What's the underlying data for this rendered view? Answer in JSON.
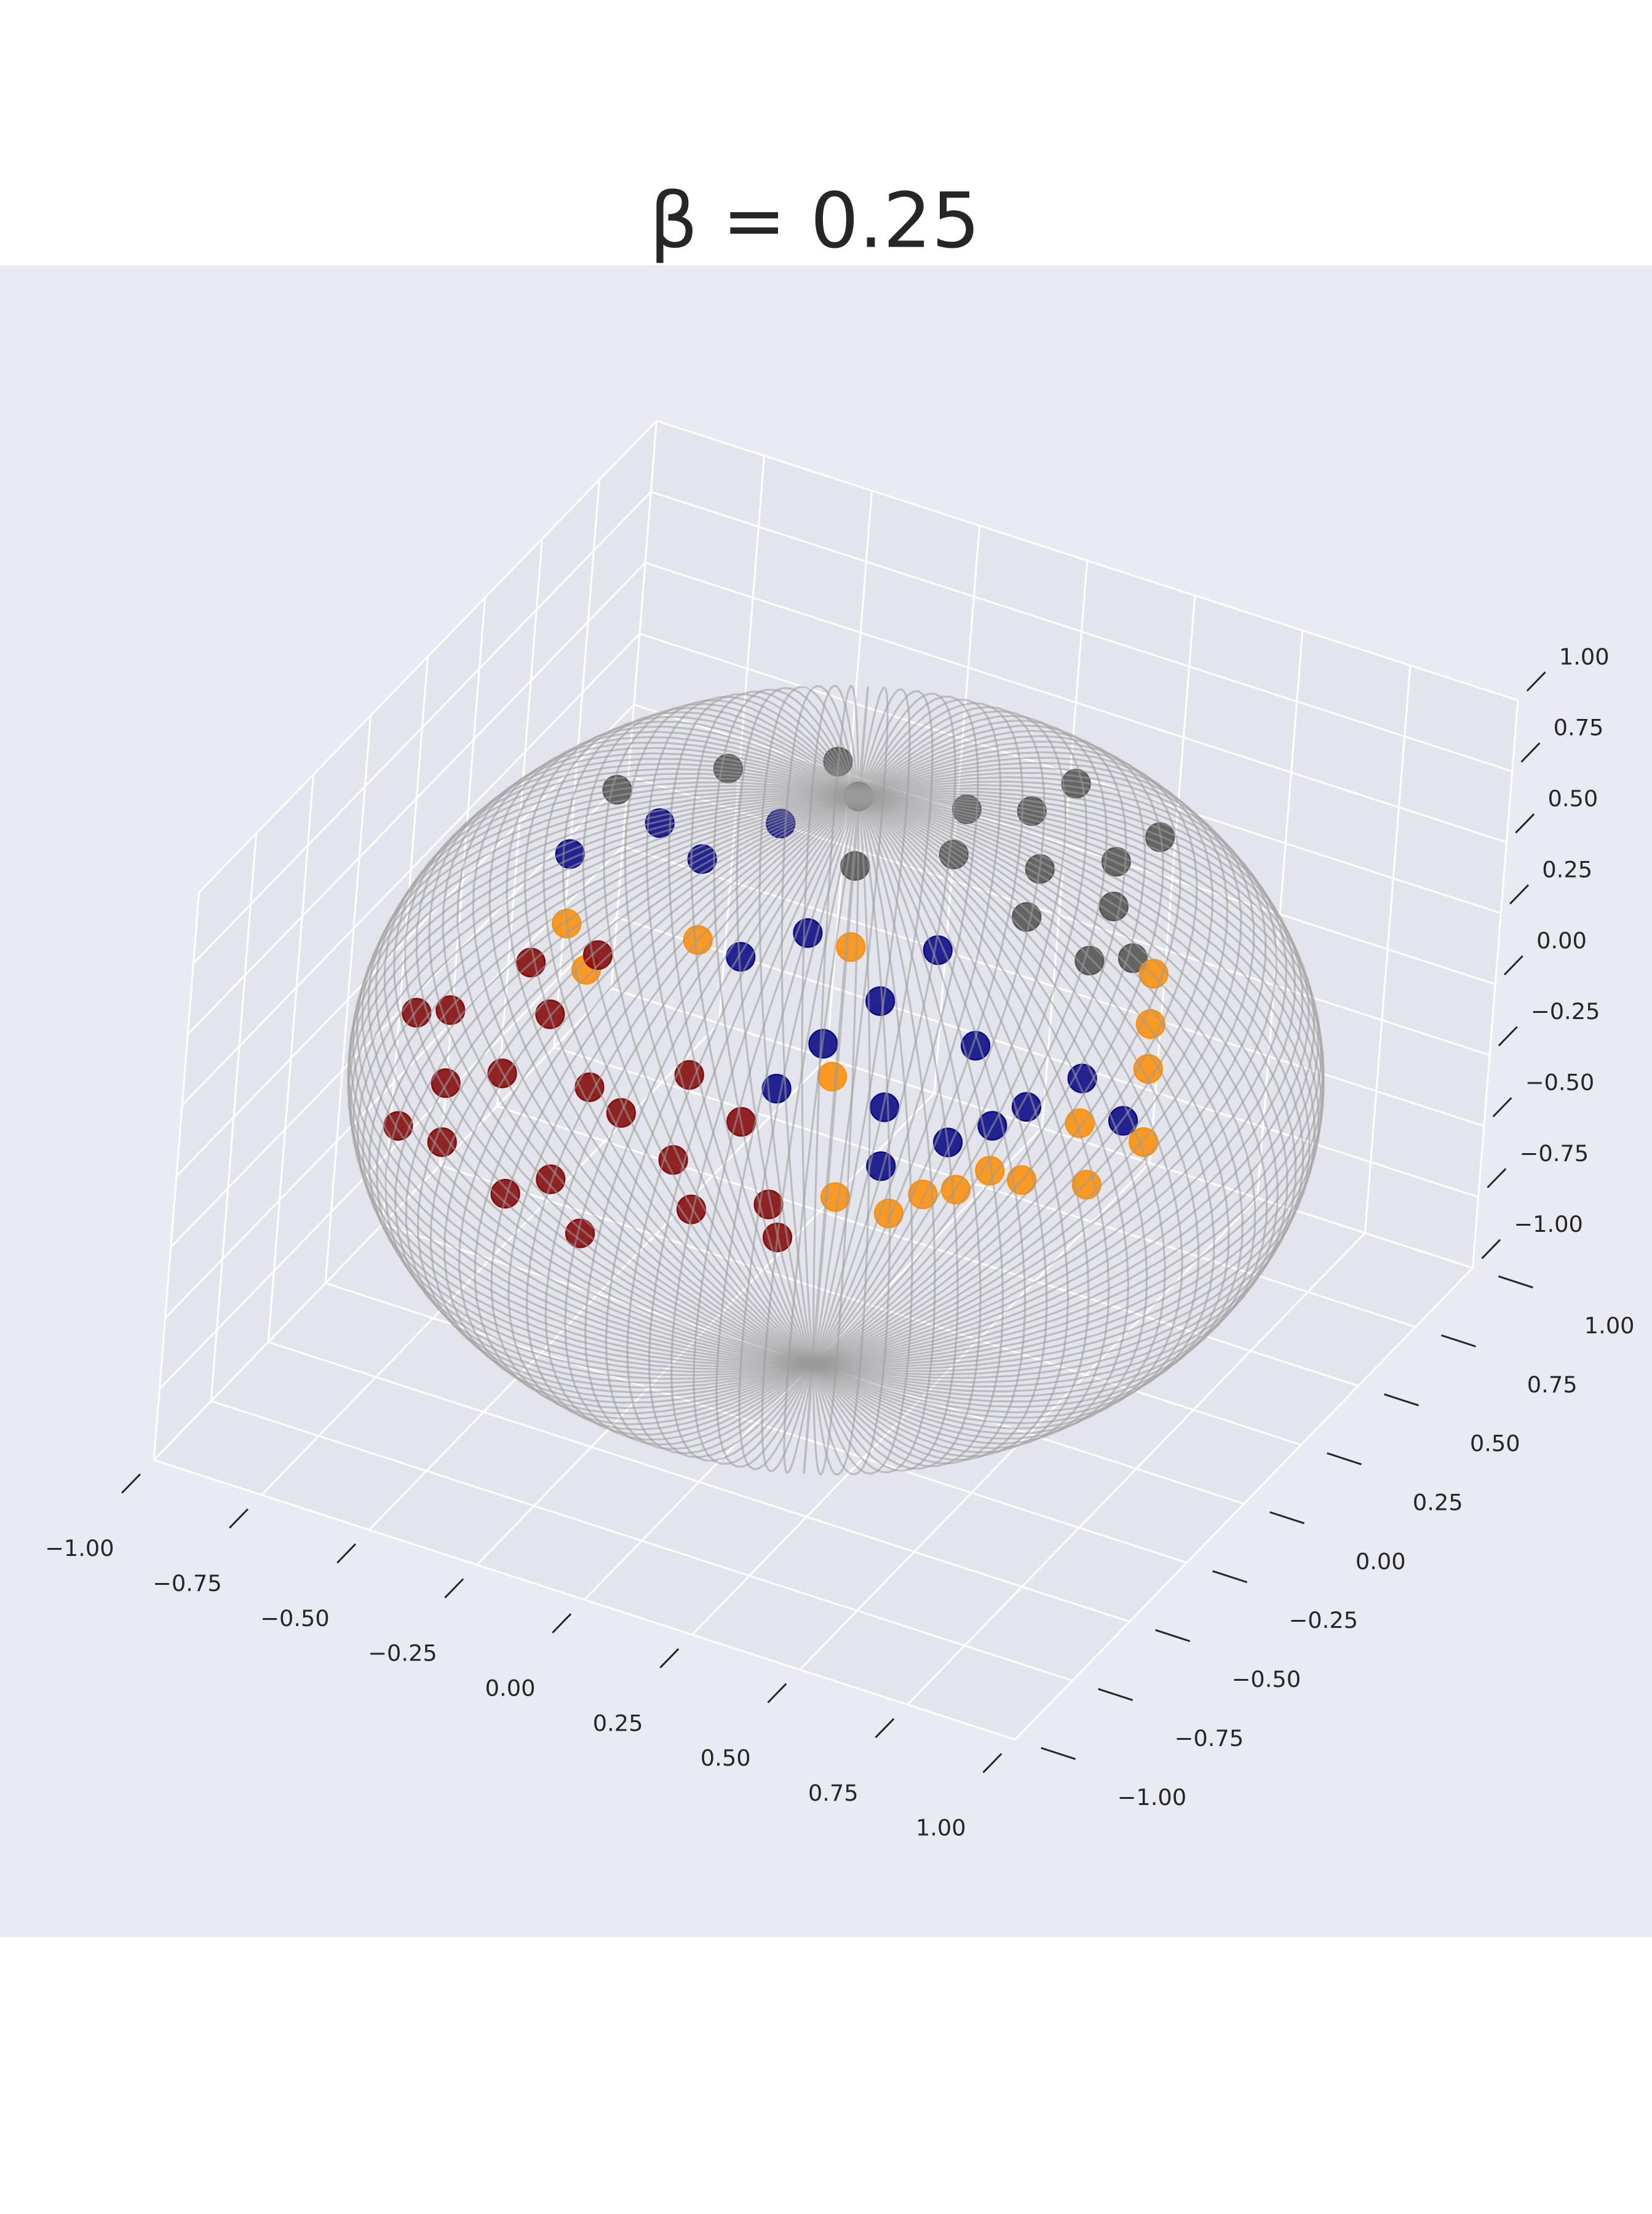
{
  "chart_data": {
    "type": "scatter3d",
    "title": "β = 0.25",
    "xlim": [
      -1,
      1
    ],
    "ylim": [
      -1,
      1
    ],
    "zlim": [
      -1,
      1
    ],
    "xticks": [
      {
        "value": -1,
        "label": "−1.00"
      },
      {
        "value": -0.75,
        "label": "−0.75"
      },
      {
        "value": -0.5,
        "label": "−0.50"
      },
      {
        "value": -0.25,
        "label": "−0.25"
      },
      {
        "value": 0,
        "label": "0.00"
      },
      {
        "value": 0.25,
        "label": "0.25"
      },
      {
        "value": 0.5,
        "label": "0.50"
      },
      {
        "value": 0.75,
        "label": "0.75"
      },
      {
        "value": 1,
        "label": "1.00"
      }
    ],
    "yticks": [
      {
        "value": -1,
        "label": "−1.00"
      },
      {
        "value": -0.75,
        "label": "−0.75"
      },
      {
        "value": -0.5,
        "label": "−0.50"
      },
      {
        "value": -0.25,
        "label": "−0.25"
      },
      {
        "value": 0,
        "label": "0.00"
      },
      {
        "value": 0.25,
        "label": "0.25"
      },
      {
        "value": 0.5,
        "label": "0.50"
      },
      {
        "value": 0.75,
        "label": "0.75"
      },
      {
        "value": 1,
        "label": "1.00"
      }
    ],
    "zticks": [
      {
        "value": -1,
        "label": "−1.00"
      },
      {
        "value": -0.75,
        "label": "−0.75"
      },
      {
        "value": -0.5,
        "label": "−0.50"
      },
      {
        "value": -0.25,
        "label": "−0.25"
      },
      {
        "value": 0,
        "label": "0.00"
      },
      {
        "value": 0.25,
        "label": "0.25"
      },
      {
        "value": 0.5,
        "label": "0.50"
      },
      {
        "value": 0.75,
        "label": "0.75"
      },
      {
        "value": 1,
        "label": "1.00"
      }
    ],
    "grid": true,
    "series": [
      {
        "color": "#4d4d4d",
        "x": [
          0.3,
          0,
          0.5,
          0.5,
          0.55,
          0.45,
          0.6,
          0.2,
          -0.1,
          -0.3,
          0.1,
          0.3,
          -0.5,
          0.65,
          0.4,
          0.25
        ],
        "y": [
          0.2,
          0,
          0.2,
          0.4,
          0.1,
          -0.1,
          -0.1,
          0.1,
          0.1,
          0,
          -0.2,
          0.4,
          -0.1,
          0,
          0.05,
          -0.05
        ],
        "z": [
          0.93,
          1,
          0.85,
          0.77,
          0.8,
          0.88,
          0.8,
          0.97,
          0.99,
          0.95,
          0.97,
          0.86,
          0.86,
          0.75,
          0.9,
          0.96
        ]
      },
      {
        "color": "#ff8c00",
        "x": [
          0.7,
          0.6,
          0.5,
          0.75,
          0.8,
          0.75,
          0.7,
          0.8,
          0.4,
          0.65,
          0.85,
          -0.3,
          -0.1,
          -0.4,
          0.2,
          0.3,
          0.55
        ],
        "y": [
          -0.55,
          -0.65,
          -0.75,
          -0.4,
          -0.2,
          -0.1,
          0,
          -0.45,
          -0.8,
          -0.6,
          -0.3,
          -0.6,
          -0.5,
          -0.5,
          -0.4,
          -0.65,
          -0.7
        ],
        "z": [
          0.45,
          0.45,
          0.4,
          0.55,
          0.6,
          0.65,
          0.72,
          0.4,
          0.45,
          0.5,
          0.45,
          0.74,
          0.86,
          0.77,
          0.9,
          0.7,
          0.45
        ]
      },
      {
        "color": "#800000",
        "x": [
          -0.4,
          -0.55,
          -0.65,
          -0.3,
          -0.1,
          0.1,
          0.25,
          -0.2,
          0,
          0.15,
          -0.45,
          -0.3,
          -0.5,
          -0.2,
          0.3,
          -0.6,
          0.05,
          -0.1,
          -0.7,
          -0.35
        ],
        "y": [
          -0.75,
          -0.7,
          -0.7,
          -0.9,
          -0.95,
          -0.85,
          -0.8,
          -0.75,
          -0.7,
          -0.75,
          -0.55,
          -0.55,
          -0.8,
          -0.9,
          -0.85,
          -0.6,
          -0.85,
          -0.8,
          -0.55,
          -0.65
        ],
        "z": [
          0.45,
          0.3,
          0.1,
          0.2,
          0.2,
          0.3,
          0.35,
          0.5,
          0.6,
          0.55,
          0.65,
          0.75,
          0.2,
          0.3,
          0.3,
          0.45,
          0.45,
          0.5,
          0.35,
          0.6
        ]
      },
      {
        "color": "#000080",
        "x": [
          0.4,
          0.5,
          0.3,
          0.6,
          0.7,
          0.2,
          0.1,
          -0.2,
          -0.5,
          -0.35,
          0.45,
          0.8,
          0.35,
          0,
          0.55,
          0.25,
          -0.1,
          0.65
        ],
        "y": [
          -0.6,
          -0.4,
          -0.45,
          -0.5,
          -0.3,
          -0.7,
          -0.4,
          -0.3,
          -0.3,
          -0.2,
          -0.7,
          -0.3,
          -0.3,
          -0.5,
          -0.6,
          -0.6,
          -0.15,
          -0.45
        ],
        "z": [
          0.6,
          0.7,
          0.8,
          0.55,
          0.6,
          0.65,
          0.9,
          0.93,
          0.8,
          0.9,
          0.5,
          0.5,
          0.88,
          0.85,
          0.55,
          0.75,
          0.98,
          0.6
        ]
      }
    ]
  }
}
